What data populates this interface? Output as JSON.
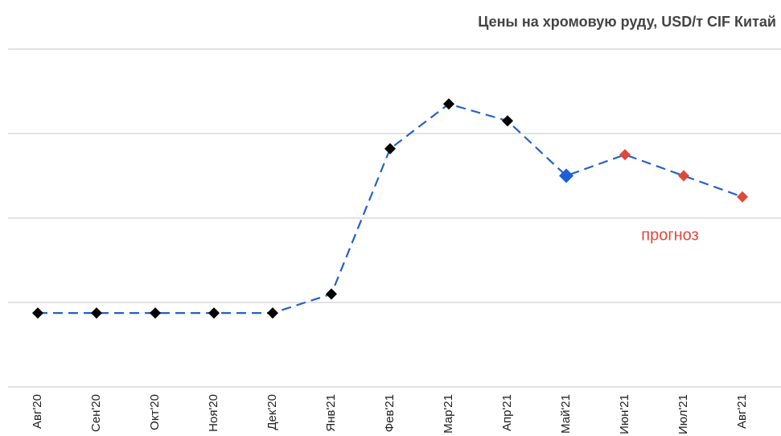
{
  "chart_data": {
    "type": "line",
    "title": "Цены на хромовую руду, USD/т CIF Китай",
    "annotation": "прогноз",
    "categories": [
      "Авг'20",
      "Сен'20",
      "Окт'20",
      "Ноя'20",
      "Дек'20",
      "Янв'21",
      "Фев'21",
      "Мар'21",
      "Апр'21",
      "Май'21",
      "Июн'21",
      "Июл'21",
      "Авг'21"
    ],
    "series": [
      {
        "color": "#2462c8",
        "values": [
          137.5,
          137.5,
          137.5,
          137.5,
          137.5,
          142,
          176.4,
          187,
          183,
          170,
          175,
          170,
          165
        ],
        "point_colors": [
          "#000000",
          "#000000",
          "#000000",
          "#000000",
          "#000000",
          "#000000",
          "#000000",
          "#000000",
          "#000000",
          "#1f5fd6",
          "#e2473b",
          "#e2473b",
          "#e2473b"
        ]
      }
    ],
    "ylim": [
      120,
      200
    ],
    "yticks": [
      120,
      140,
      160,
      180,
      200
    ],
    "grid": true
  }
}
